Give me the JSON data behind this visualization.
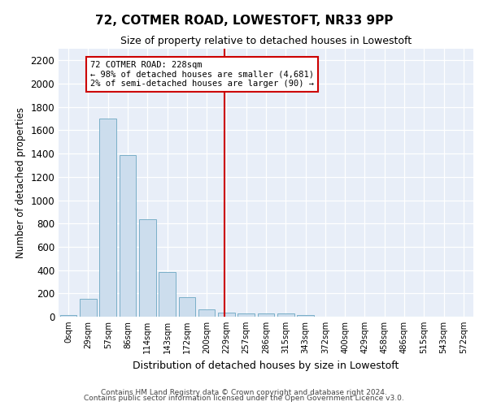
{
  "title": "72, COTMER ROAD, LOWESTOFT, NR33 9PP",
  "subtitle": "Size of property relative to detached houses in Lowestoft",
  "xlabel": "Distribution of detached houses by size in Lowestoft",
  "ylabel": "Number of detached properties",
  "bar_labels": [
    "0sqm",
    "29sqm",
    "57sqm",
    "86sqm",
    "114sqm",
    "143sqm",
    "172sqm",
    "200sqm",
    "229sqm",
    "257sqm",
    "286sqm",
    "315sqm",
    "343sqm",
    "372sqm",
    "400sqm",
    "429sqm",
    "458sqm",
    "486sqm",
    "515sqm",
    "543sqm",
    "572sqm"
  ],
  "bar_values": [
    15,
    155,
    1700,
    1390,
    835,
    385,
    165,
    65,
    35,
    28,
    30,
    30,
    15,
    0,
    0,
    0,
    0,
    0,
    0,
    0,
    0
  ],
  "bar_color": "#ccdded",
  "bar_edge_color": "#7aafc8",
  "vline_color": "#cc0000",
  "annotation_box_color": "#ffffff",
  "annotation_box_edge_color": "#cc0000",
  "annotation_line1": "72 COTMER ROAD: 228sqm",
  "annotation_line2": "← 98% of detached houses are smaller (4,681)",
  "annotation_line3": "2% of semi-detached houses are larger (90) →",
  "ylim": [
    0,
    2300
  ],
  "yticks": [
    0,
    200,
    400,
    600,
    800,
    1000,
    1200,
    1400,
    1600,
    1800,
    2000,
    2200
  ],
  "background_color": "#e8eef8",
  "grid_color": "#ffffff",
  "footer1": "Contains HM Land Registry data © Crown copyright and database right 2024.",
  "footer2": "Contains public sector information licensed under the Open Government Licence v3.0."
}
